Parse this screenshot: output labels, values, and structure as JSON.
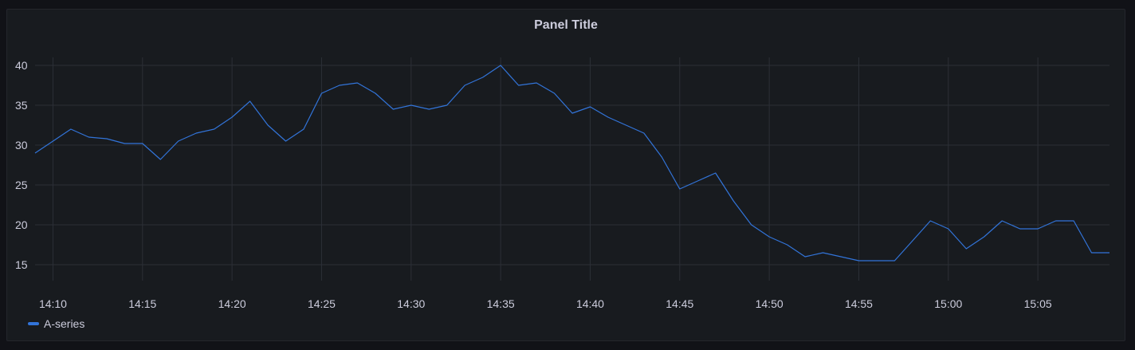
{
  "panel": {
    "title": "Panel Title"
  },
  "chart_data": {
    "type": "line",
    "title": "Panel Title",
    "xlabel": "",
    "ylabel": "",
    "x_ticks": [
      "14:10",
      "14:15",
      "14:20",
      "14:25",
      "14:30",
      "14:35",
      "14:40",
      "14:45",
      "14:50",
      "14:55",
      "15:00",
      "15:05"
    ],
    "y_ticks": [
      15,
      20,
      25,
      30,
      35,
      40
    ],
    "xlim": [
      "14:09",
      "15:09"
    ],
    "ylim": [
      13,
      43
    ],
    "grid": true,
    "legend_position": "bottom-left",
    "series": [
      {
        "name": "A-series",
        "color": "#3274d9",
        "x": [
          "14:09",
          "14:10",
          "14:11",
          "14:12",
          "14:13",
          "14:14",
          "14:15",
          "14:16",
          "14:17",
          "14:18",
          "14:19",
          "14:20",
          "14:21",
          "14:22",
          "14:23",
          "14:24",
          "14:25",
          "14:26",
          "14:27",
          "14:28",
          "14:29",
          "14:30",
          "14:31",
          "14:32",
          "14:33",
          "14:34",
          "14:35",
          "14:36",
          "14:37",
          "14:38",
          "14:39",
          "14:40",
          "14:41",
          "14:42",
          "14:43",
          "14:44",
          "14:45",
          "14:46",
          "14:47",
          "14:48",
          "14:49",
          "14:50",
          "14:51",
          "14:52",
          "14:53",
          "14:54",
          "14:55",
          "14:56",
          "14:57",
          "14:58",
          "14:59",
          "15:00",
          "15:01",
          "15:02",
          "15:03",
          "15:04",
          "15:05",
          "15:06",
          "15:07",
          "15:08",
          "15:09"
        ],
        "values": [
          29,
          30.5,
          32,
          31,
          30.8,
          30.2,
          30.2,
          28.2,
          30.5,
          31.5,
          32,
          33.5,
          35.5,
          32.5,
          30.5,
          32,
          36.5,
          37.5,
          37.8,
          36.5,
          34.5,
          35,
          34.5,
          35,
          37.5,
          38.5,
          40,
          37.5,
          37.8,
          36.5,
          34,
          34.8,
          33.5,
          32.5,
          31.5,
          28.5,
          24.5,
          25.5,
          26.5,
          23,
          20,
          18.5,
          17.5,
          16,
          16.5,
          16,
          15.5,
          15.5,
          15.5,
          18,
          20.5,
          19.5,
          17,
          18.5,
          20.5,
          19.5,
          19.5,
          20.5,
          20.5,
          16.5,
          16.5
        ]
      }
    ]
  }
}
